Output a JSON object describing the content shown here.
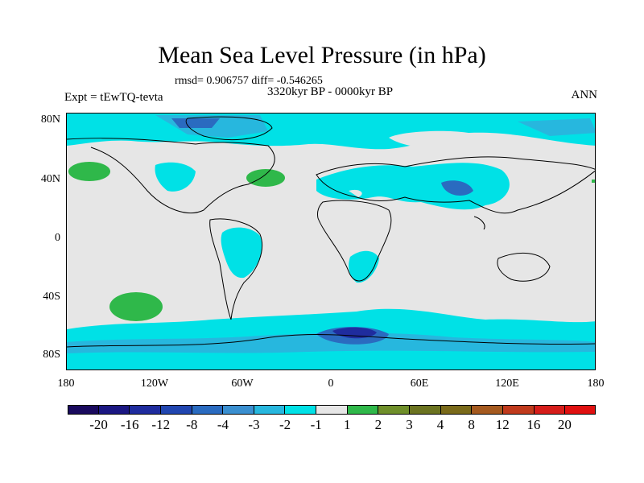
{
  "title": "Mean Sea Level Pressure (in hPa)",
  "stats": "rmsd= 0.906757 diff= -0.546265",
  "subtitle": "3320kyr BP - 0000kyr BP",
  "left_label": "Expt = tEwTQ-tevta",
  "right_label": "ANN",
  "lat_ticks": [
    "80N",
    "40N",
    "0",
    "40S",
    "80S"
  ],
  "lon_ticks": [
    "180",
    "120W",
    "60W",
    "0",
    "60E",
    "120E",
    "180"
  ],
  "colorbar": {
    "labels": [
      "-20",
      "-16",
      "-12",
      "-8",
      "-4",
      "-3",
      "-2",
      "-1",
      "1",
      "2",
      "3",
      "4",
      "8",
      "12",
      "16",
      "20"
    ],
    "colors": [
      "#1a0a5e",
      "#1b1782",
      "#1f2c9e",
      "#2146b0",
      "#2a6bc0",
      "#3a8fd0",
      "#27b7de",
      "#00e1e6",
      "#e6e6e6",
      "#2fb84a",
      "#6f8f2a",
      "#6b7320",
      "#7a6a1a",
      "#a55a1f",
      "#c03a1c",
      "#d61d1a",
      "#e01010"
    ]
  },
  "colors": {
    "background": "#e6e6e6",
    "cyan": "#00e1e6",
    "sky": "#27b7de",
    "blue": "#2a6bc0",
    "darkblue": "#1f2c9e",
    "green": "#2fb84a"
  }
}
